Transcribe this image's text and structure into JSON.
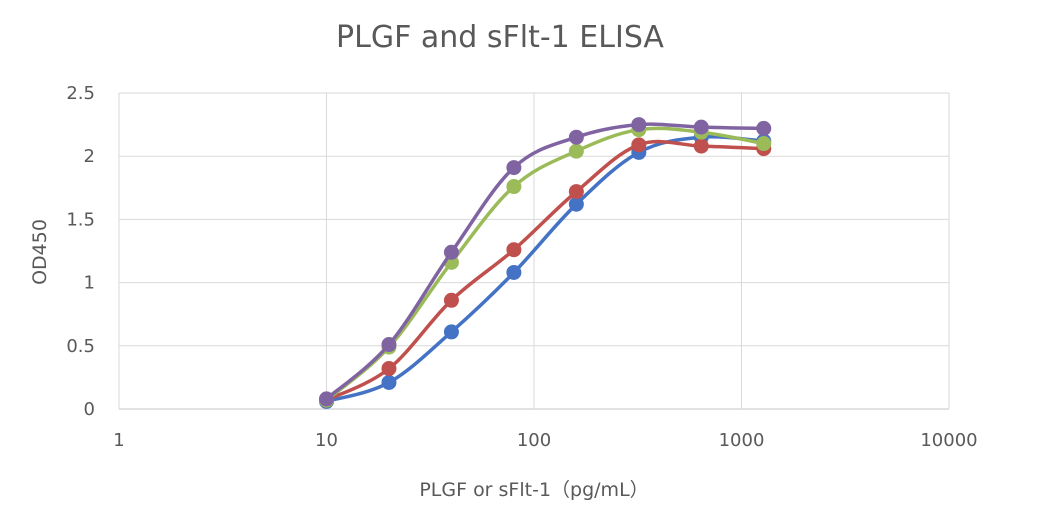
{
  "chart_data": {
    "type": "scatter",
    "title": "PLGF and sFlt-1 ELISA",
    "xlabel": "PLGF or sFlt-1（pg/mL）",
    "ylabel": "OD450",
    "xscale": "log",
    "xlim": [
      1,
      10000
    ],
    "ylim": [
      0,
      2.5
    ],
    "xticks": [
      "1",
      "10",
      "100",
      "1000",
      "10000"
    ],
    "yticks": [
      "0",
      "0.5",
      "1",
      "1.5",
      "2",
      "2.5"
    ],
    "grid": true,
    "legend": "none",
    "x": [
      10,
      20,
      40,
      80,
      160,
      320,
      640,
      1280
    ],
    "series": [
      {
        "name": "blue",
        "color": "#4472c4",
        "values": [
          0.06,
          0.21,
          0.61,
          1.08,
          1.62,
          2.03,
          2.15,
          2.12
        ]
      },
      {
        "name": "red",
        "color": "#c0504d",
        "values": [
          0.07,
          0.32,
          0.86,
          1.26,
          1.72,
          2.09,
          2.08,
          2.06
        ]
      },
      {
        "name": "green",
        "color": "#9bbb59",
        "values": [
          0.07,
          0.49,
          1.16,
          1.76,
          2.04,
          2.21,
          2.19,
          2.1
        ]
      },
      {
        "name": "purple",
        "color": "#8064a2",
        "values": [
          0.08,
          0.51,
          1.24,
          1.91,
          2.15,
          2.25,
          2.23,
          2.22
        ]
      }
    ]
  }
}
